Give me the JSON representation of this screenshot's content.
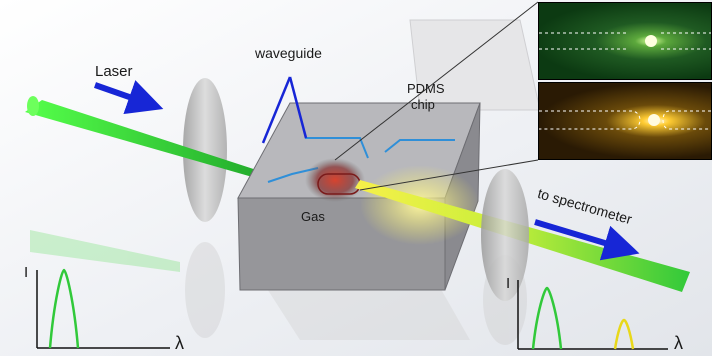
{
  "labels": {
    "laser": "Laser",
    "waveguide": "waveguide",
    "pdms_line1": "PDMS",
    "pdms_line2": "chip",
    "gas": "Gas",
    "to_spectrometer": "to spectrometer"
  },
  "spectrum_left": {
    "y_axis": "I",
    "x_axis": "λ"
  },
  "spectrum_right": {
    "y_axis": "I",
    "x_axis": "λ"
  },
  "colors": {
    "laser_green": "#39d33a",
    "scatter_yellow": "#f3e83a",
    "arrow_blue": "#1726d6",
    "waveguide_blue": "#2f8fd8",
    "chip_gray": "#8f8f8f"
  },
  "insets": [
    {
      "name": "green-emission-micrograph",
      "tint": "#0c3a12"
    },
    {
      "name": "yellow-emission-micrograph",
      "tint": "#2a1a04"
    }
  ]
}
